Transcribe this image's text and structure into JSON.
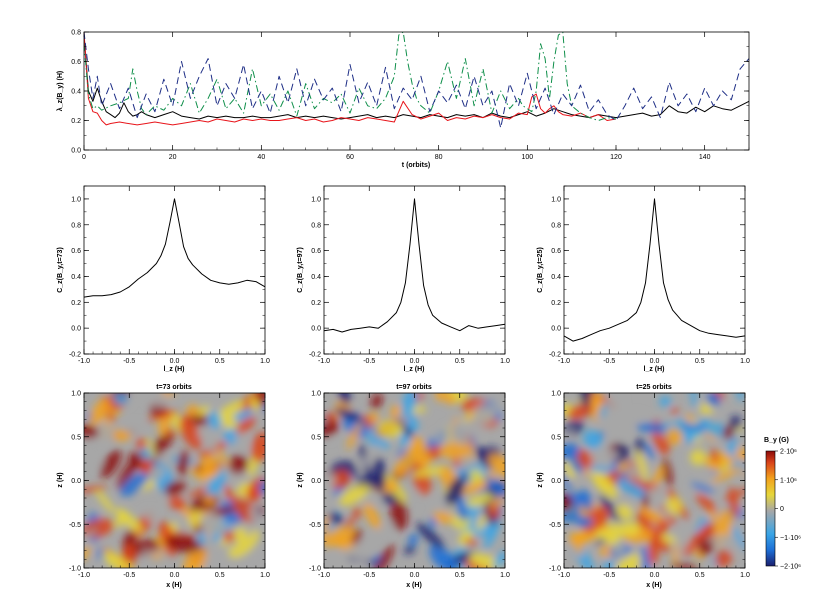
{
  "chart_data": [
    {
      "type": "line",
      "panel": "top",
      "title": "",
      "xlabel": "t (orbits)",
      "ylabel": "λ_z(B_y) (H)",
      "xlim": [
        0,
        150
      ],
      "ylim": [
        0.0,
        0.8
      ],
      "xticks": [
        0,
        20,
        40,
        60,
        80,
        100,
        120,
        140
      ],
      "yticks": [
        0.0,
        0.2,
        0.4,
        0.6,
        0.8
      ],
      "series": [
        {
          "color": "#000000",
          "style": "solid",
          "x": [
            0,
            1,
            2,
            3,
            4,
            5,
            6,
            7,
            8,
            9,
            10,
            11,
            12,
            13,
            14,
            15,
            16,
            18,
            20,
            22,
            24,
            26,
            28,
            30,
            32,
            34,
            36,
            38,
            40,
            42,
            44,
            46,
            48,
            50,
            52,
            54,
            56,
            58,
            60,
            62,
            64,
            66,
            68,
            70,
            72,
            74,
            76,
            78,
            80,
            82,
            84,
            86,
            88,
            90,
            92,
            94,
            96,
            98,
            100,
            102,
            104,
            106,
            108,
            110,
            112,
            114,
            116,
            118,
            120,
            122,
            124,
            126,
            128,
            130,
            132,
            134,
            136,
            138,
            140,
            142,
            144,
            146,
            148,
            150
          ],
          "y": [
            0.78,
            0.4,
            0.33,
            0.42,
            0.33,
            0.26,
            0.24,
            0.22,
            0.25,
            0.32,
            0.26,
            0.23,
            0.24,
            0.26,
            0.24,
            0.23,
            0.22,
            0.24,
            0.26,
            0.23,
            0.22,
            0.21,
            0.23,
            0.22,
            0.23,
            0.22,
            0.22,
            0.23,
            0.22,
            0.22,
            0.23,
            0.24,
            0.22,
            0.23,
            0.22,
            0.23,
            0.22,
            0.21,
            0.22,
            0.23,
            0.24,
            0.22,
            0.23,
            0.22,
            0.24,
            0.23,
            0.22,
            0.24,
            0.23,
            0.22,
            0.24,
            0.23,
            0.24,
            0.22,
            0.25,
            0.23,
            0.22,
            0.24,
            0.26,
            0.23,
            0.25,
            0.28,
            0.26,
            0.24,
            0.23,
            0.22,
            0.24,
            0.23,
            0.22,
            0.23,
            0.24,
            0.25,
            0.23,
            0.24,
            0.3,
            0.26,
            0.25,
            0.29,
            0.26,
            0.3,
            0.28,
            0.27,
            0.3,
            0.33
          ]
        },
        {
          "color": "#e8151b",
          "style": "solid",
          "x": [
            0,
            1,
            2,
            3,
            4,
            5,
            6,
            8,
            10,
            12,
            14,
            16,
            18,
            20,
            22,
            24,
            26,
            28,
            30,
            32,
            34,
            36,
            38,
            40,
            42,
            44,
            46,
            48,
            50,
            52,
            54,
            56,
            58,
            60,
            62,
            64,
            66,
            68,
            70,
            72,
            74,
            76,
            78,
            80,
            82,
            84,
            86,
            88,
            90,
            92,
            94,
            96,
            98,
            100,
            101,
            102,
            103,
            104,
            105,
            106,
            107,
            108,
            110,
            112,
            114,
            116,
            118,
            120
          ],
          "y": [
            0.8,
            0.35,
            0.26,
            0.25,
            0.2,
            0.17,
            0.18,
            0.19,
            0.18,
            0.17,
            0.18,
            0.19,
            0.18,
            0.17,
            0.18,
            0.19,
            0.2,
            0.19,
            0.21,
            0.2,
            0.19,
            0.21,
            0.2,
            0.21,
            0.2,
            0.2,
            0.21,
            0.22,
            0.2,
            0.21,
            0.19,
            0.2,
            0.22,
            0.21,
            0.2,
            0.22,
            0.21,
            0.2,
            0.19,
            0.33,
            0.24,
            0.21,
            0.23,
            0.25,
            0.2,
            0.22,
            0.21,
            0.23,
            0.22,
            0.24,
            0.22,
            0.21,
            0.25,
            0.24,
            0.36,
            0.38,
            0.28,
            0.25,
            0.28,
            0.3,
            0.26,
            0.24,
            0.23,
            0.25,
            0.22,
            0.24,
            0.2,
            0.21
          ]
        },
        {
          "color": "#0f8f4a",
          "style": "dashdot",
          "x": [
            0,
            1,
            2,
            3,
            4,
            6,
            8,
            10,
            11,
            12,
            13,
            14,
            16,
            18,
            20,
            22,
            24,
            26,
            28,
            30,
            32,
            34,
            36,
            38,
            40,
            42,
            44,
            46,
            48,
            50,
            52,
            54,
            56,
            58,
            60,
            62,
            64,
            66,
            68,
            70,
            71,
            72,
            73,
            74,
            75,
            76,
            78,
            80,
            82,
            84,
            86,
            88,
            90,
            92,
            94,
            96,
            98,
            99,
            100,
            101,
            102,
            103,
            104,
            105,
            106,
            107,
            108,
            109,
            110,
            112,
            114,
            116,
            118,
            120
          ],
          "y": [
            0.72,
            0.38,
            0.28,
            0.3,
            0.27,
            0.3,
            0.32,
            0.35,
            0.55,
            0.4,
            0.28,
            0.24,
            0.3,
            0.27,
            0.35,
            0.3,
            0.45,
            0.25,
            0.35,
            0.48,
            0.28,
            0.35,
            0.25,
            0.55,
            0.3,
            0.38,
            0.27,
            0.4,
            0.23,
            0.45,
            0.28,
            0.35,
            0.32,
            0.38,
            0.25,
            0.42,
            0.3,
            0.28,
            0.35,
            0.5,
            0.78,
            0.8,
            0.6,
            0.45,
            0.35,
            0.3,
            0.25,
            0.4,
            0.6,
            0.35,
            0.62,
            0.3,
            0.55,
            0.25,
            0.4,
            0.28,
            0.35,
            0.3,
            0.28,
            0.26,
            0.4,
            0.72,
            0.62,
            0.35,
            0.6,
            0.78,
            0.8,
            0.45,
            0.3,
            0.25,
            0.22,
            0.2,
            0.22,
            0.21
          ]
        },
        {
          "color": "#1e2e86",
          "style": "dashed",
          "x": [
            0,
            1,
            2,
            3,
            4,
            6,
            8,
            10,
            12,
            14,
            16,
            18,
            20,
            22,
            24,
            26,
            28,
            30,
            32,
            34,
            36,
            38,
            40,
            42,
            44,
            46,
            48,
            50,
            52,
            54,
            56,
            58,
            60,
            62,
            64,
            66,
            68,
            70,
            72,
            74,
            76,
            78,
            80,
            82,
            84,
            86,
            88,
            90,
            92,
            94,
            96,
            98,
            100,
            102,
            104,
            106,
            108,
            110,
            112,
            114,
            116,
            118,
            120,
            122,
            124,
            126,
            128,
            130,
            132,
            134,
            136,
            138,
            140,
            142,
            144,
            146,
            148,
            150
          ],
          "y": [
            0.8,
            0.55,
            0.35,
            0.5,
            0.3,
            0.45,
            0.28,
            0.42,
            0.22,
            0.38,
            0.26,
            0.48,
            0.3,
            0.6,
            0.35,
            0.5,
            0.62,
            0.3,
            0.45,
            0.35,
            0.58,
            0.28,
            0.4,
            0.25,
            0.5,
            0.32,
            0.55,
            0.3,
            0.48,
            0.34,
            0.42,
            0.26,
            0.58,
            0.32,
            0.46,
            0.3,
            0.56,
            0.28,
            0.42,
            0.34,
            0.5,
            0.26,
            0.4,
            0.32,
            0.44,
            0.28,
            0.5,
            0.3,
            0.4,
            0.15,
            0.45,
            0.3,
            0.52,
            0.28,
            0.42,
            0.24,
            0.38,
            0.3,
            0.44,
            0.26,
            0.34,
            0.24,
            0.2,
            0.3,
            0.42,
            0.28,
            0.36,
            0.22,
            0.46,
            0.3,
            0.38,
            0.26,
            0.42,
            0.3,
            0.4,
            0.34,
            0.55,
            0.62
          ]
        }
      ]
    },
    {
      "type": "line",
      "panel": "corr-1",
      "title": "",
      "xlabel": "l_z (H)",
      "ylabel": "C_z(B_y,t=73)",
      "xlim": [
        -1.0,
        1.0
      ],
      "ylim": [
        -0.2,
        1.1
      ],
      "xticks": [
        -1.0,
        -0.5,
        0.0,
        0.5,
        1.0
      ],
      "yticks": [
        -0.2,
        0.0,
        0.2,
        0.4,
        0.6,
        0.8,
        1.0
      ],
      "series": [
        {
          "color": "#000000",
          "style": "solid",
          "x": [
            -1.0,
            -0.9,
            -0.8,
            -0.7,
            -0.6,
            -0.5,
            -0.4,
            -0.3,
            -0.2,
            -0.15,
            -0.1,
            -0.05,
            0.0,
            0.05,
            0.1,
            0.15,
            0.2,
            0.3,
            0.4,
            0.5,
            0.6,
            0.7,
            0.8,
            0.9,
            1.0
          ],
          "y": [
            0.24,
            0.25,
            0.25,
            0.26,
            0.28,
            0.32,
            0.38,
            0.43,
            0.5,
            0.56,
            0.65,
            0.82,
            1.0,
            0.82,
            0.63,
            0.54,
            0.49,
            0.42,
            0.37,
            0.35,
            0.34,
            0.35,
            0.37,
            0.36,
            0.32
          ]
        }
      ]
    },
    {
      "type": "line",
      "panel": "corr-2",
      "title": "",
      "xlabel": "l_z (H)",
      "ylabel": "C_z(B_y,t=97)",
      "xlim": [
        -1.0,
        1.0
      ],
      "ylim": [
        -0.2,
        1.1
      ],
      "xticks": [
        -1.0,
        -0.5,
        0.0,
        0.5,
        1.0
      ],
      "yticks": [
        -0.2,
        0.0,
        0.2,
        0.4,
        0.6,
        0.8,
        1.0
      ],
      "series": [
        {
          "color": "#000000",
          "style": "solid",
          "x": [
            -1.0,
            -0.9,
            -0.8,
            -0.7,
            -0.6,
            -0.5,
            -0.4,
            -0.3,
            -0.2,
            -0.15,
            -0.1,
            -0.05,
            0.0,
            0.05,
            0.1,
            0.15,
            0.2,
            0.3,
            0.4,
            0.5,
            0.6,
            0.7,
            0.8,
            0.9,
            1.0
          ],
          "y": [
            -0.02,
            -0.01,
            -0.03,
            -0.01,
            0.0,
            0.01,
            0.0,
            0.05,
            0.12,
            0.2,
            0.35,
            0.65,
            1.0,
            0.65,
            0.33,
            0.18,
            0.1,
            0.04,
            0.01,
            -0.02,
            0.02,
            0.0,
            0.01,
            0.02,
            0.03
          ]
        }
      ]
    },
    {
      "type": "line",
      "panel": "corr-3",
      "title": "",
      "xlabel": "l_z (H)",
      "ylabel": "C_z(B_y,t=25)",
      "xlim": [
        -1.0,
        1.0
      ],
      "ylim": [
        -0.2,
        1.1
      ],
      "xticks": [
        -1.0,
        -0.5,
        0.0,
        0.5,
        1.0
      ],
      "yticks": [
        -0.2,
        0.0,
        0.2,
        0.4,
        0.6,
        0.8,
        1.0
      ],
      "series": [
        {
          "color": "#000000",
          "style": "solid",
          "x": [
            -1.0,
            -0.9,
            -0.8,
            -0.7,
            -0.6,
            -0.5,
            -0.4,
            -0.3,
            -0.2,
            -0.15,
            -0.1,
            -0.05,
            0.0,
            0.05,
            0.1,
            0.15,
            0.2,
            0.3,
            0.4,
            0.5,
            0.6,
            0.7,
            0.8,
            0.9,
            1.0
          ],
          "y": [
            -0.06,
            -0.1,
            -0.08,
            -0.05,
            -0.02,
            0.0,
            0.03,
            0.06,
            0.12,
            0.2,
            0.35,
            0.65,
            1.0,
            0.65,
            0.35,
            0.22,
            0.14,
            0.06,
            0.02,
            -0.02,
            -0.04,
            -0.05,
            -0.06,
            -0.07,
            -0.06
          ]
        }
      ]
    },
    {
      "type": "heatmap",
      "panel": "map-1",
      "title": "t=73 orbits",
      "xlabel": "x (H)",
      "ylabel": "z (H)",
      "xlim": [
        -1.0,
        1.0
      ],
      "ylim": [
        -1.0,
        1.0
      ],
      "xticks": [
        -1.0,
        -0.5,
        0.0,
        0.5,
        1.0
      ],
      "yticks": [
        -1.0,
        -0.5,
        0.0,
        0.5,
        1.0
      ],
      "bias": 0.35
    },
    {
      "type": "heatmap",
      "panel": "map-2",
      "title": "t=97 orbits",
      "xlabel": "x (H)",
      "ylabel": "z (H)",
      "xlim": [
        -1.0,
        1.0
      ],
      "ylim": [
        -1.0,
        1.0
      ],
      "xticks": [
        -1.0,
        -0.5,
        0.0,
        0.5,
        1.0
      ],
      "yticks": [
        -1.0,
        -0.5,
        0.0,
        0.5,
        1.0
      ],
      "bias": -0.1
    },
    {
      "type": "heatmap",
      "panel": "map-3",
      "title": "t=25 orbits",
      "xlabel": "x (H)",
      "ylabel": "z (H)",
      "xlim": [
        -1.0,
        1.0
      ],
      "ylim": [
        -1.0,
        1.0
      ],
      "xticks": [
        -1.0,
        -0.5,
        0.0,
        0.5,
        1.0
      ],
      "yticks": [
        -1.0,
        -0.5,
        0.0,
        0.5,
        1.0
      ],
      "bias": 0.05
    }
  ],
  "colorbar": {
    "title": "B_y (G)",
    "range": [
      -2000000,
      2000000
    ],
    "ticks": [
      {
        "value": 2000000,
        "label": "2·10⁶"
      },
      {
        "value": 1000000,
        "label": "1·10⁶"
      },
      {
        "value": 0,
        "label": "0"
      },
      {
        "value": -1000000,
        "label": "−1·10⁶"
      },
      {
        "value": -2000000,
        "label": "−2·10⁶"
      }
    ],
    "colors": [
      "#1a1f6e",
      "#1d6fd6",
      "#3aa5e6",
      "#a7a7a7",
      "#e6d63a",
      "#f2a21d",
      "#d9431a",
      "#8c0a0a"
    ]
  }
}
